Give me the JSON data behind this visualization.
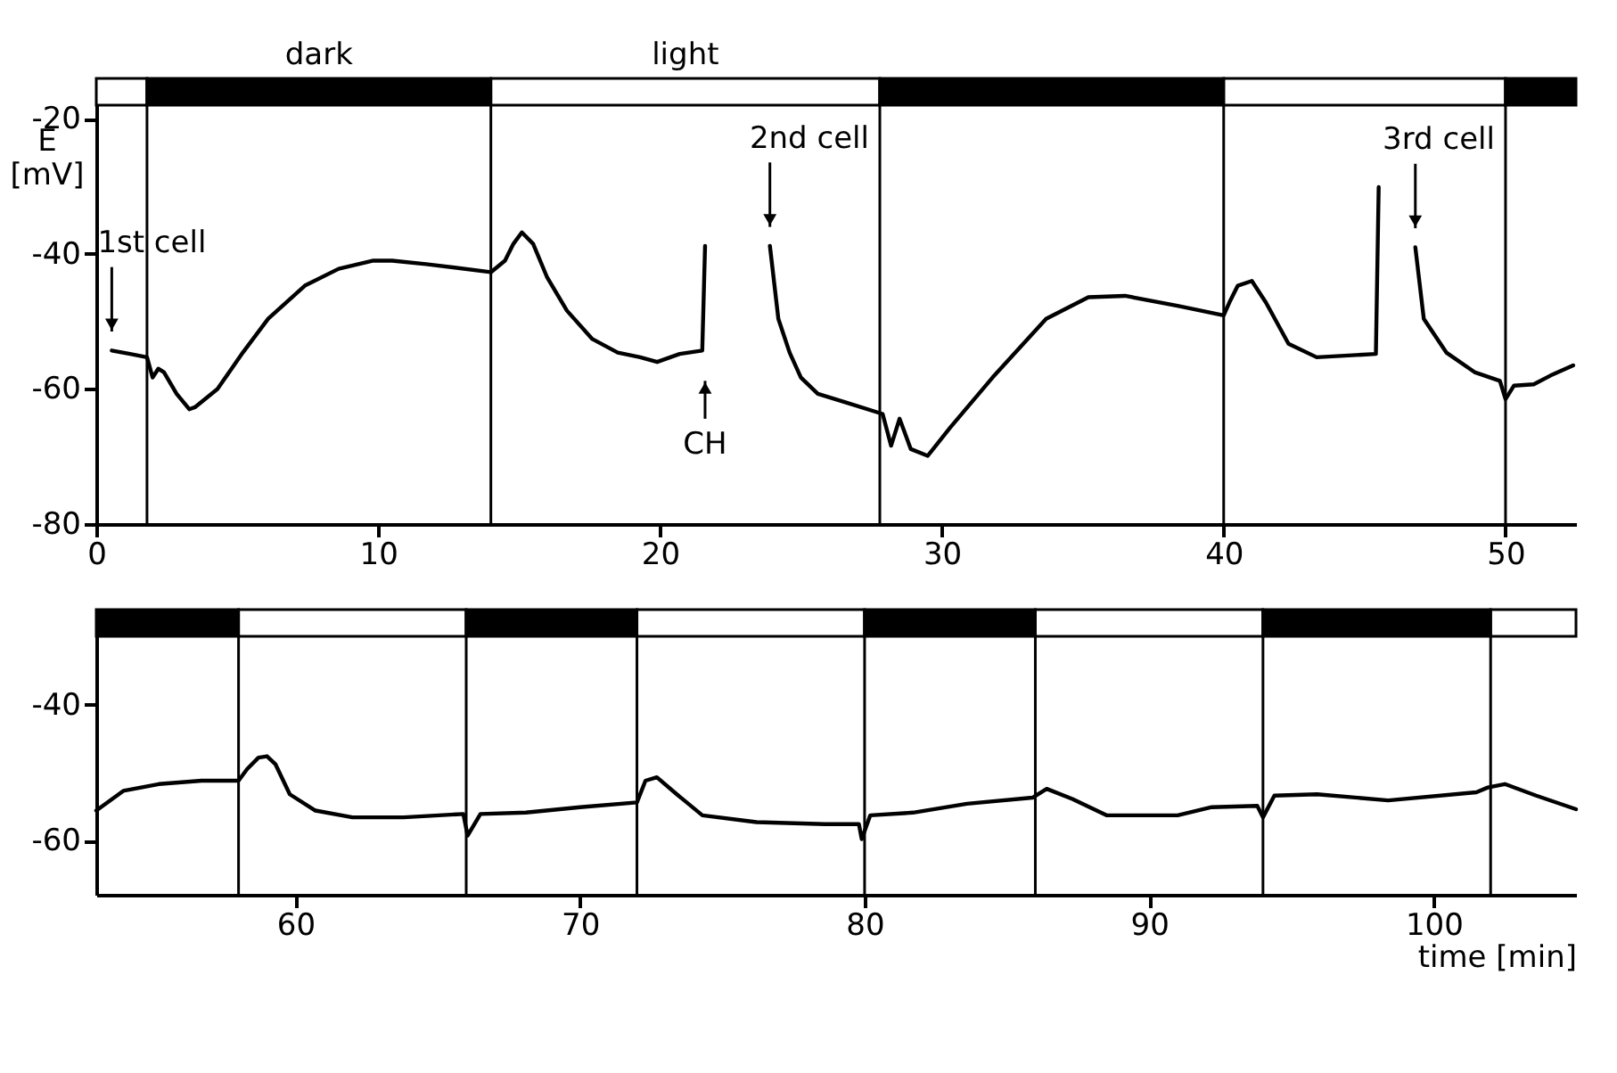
{
  "chart_data": [
    {
      "type": "line",
      "ylabel": "E [mV]",
      "xlim": [
        0,
        52.5
      ],
      "ylim": [
        -80,
        -14
      ],
      "xticks": [
        0,
        10,
        20,
        30,
        40,
        50
      ],
      "yticks": [
        -20,
        -40,
        -60,
        -80
      ],
      "x": [
        0.55,
        1.2,
        1.8,
        2.0,
        2.2,
        2.4,
        2.85,
        3.3,
        3.5,
        4.3,
        5.2,
        6.1,
        7.4,
        8.6,
        9.8,
        10.5,
        11.7,
        14,
        14.5,
        14.8,
        15.1,
        15.5,
        16,
        16.7,
        17.6,
        18.5,
        19.3,
        19.9,
        20.7,
        21.5,
        21.6,
        22.7,
        23.9,
        24.2,
        24.6,
        25,
        25.6,
        26.6,
        27.9,
        28.2,
        28.5,
        28.9,
        29.5,
        30.3,
        31.8,
        33.7,
        35.2,
        36.5,
        38.4,
        40,
        40.2,
        40.5,
        41,
        41.5,
        42.3,
        43.3,
        45.4,
        45.5,
        46.1,
        46.8,
        47.1,
        47.9,
        48.9,
        49.8,
        50,
        50.3,
        51,
        51.6,
        52.4
      ],
      "series": [
        {
          "color": "#000000",
          "values": [
            -54.3,
            -54.8,
            -55.3,
            -58.3,
            -57,
            -57.5,
            -60.7,
            -63,
            -62.7,
            -60,
            -54.6,
            -49.6,
            -44.7,
            -42.2,
            -41,
            -41,
            -41.5,
            -42.7,
            -41,
            -38.5,
            -36.8,
            -38.5,
            -43.5,
            -48.4,
            -52.6,
            -54.6,
            -55.3,
            -56,
            -54.8,
            -54.3,
            -38.8,
            null,
            -38.8,
            -49.6,
            -54.6,
            -58.3,
            -60.7,
            -62,
            -63.7,
            -68.4,
            -64.4,
            -68.9,
            -69.9,
            -65.7,
            -58.3,
            -49.6,
            -46.4,
            -46.2,
            -47.7,
            -49.1,
            -47.2,
            -44.7,
            -44,
            -47.2,
            -53.3,
            -55.3,
            -54.8,
            -30.1,
            null,
            -39,
            -49.6,
            -54.6,
            -57.5,
            -58.8,
            -61.5,
            -59.5,
            -59.3,
            -58,
            -56.5
          ]
        }
      ],
      "bands": [
        {
          "axis": "x",
          "from": 0,
          "to": 1.8,
          "color": "#ffffff"
        },
        {
          "axis": "x",
          "from": 1.8,
          "to": 14,
          "color": "#000000",
          "label": "dark"
        },
        {
          "axis": "x",
          "from": 14,
          "to": 27.8,
          "color": "#ffffff",
          "label": "light"
        },
        {
          "axis": "x",
          "from": 27.8,
          "to": 40,
          "color": "#000000"
        },
        {
          "axis": "x",
          "from": 40,
          "to": 50,
          "color": "#ffffff"
        },
        {
          "axis": "x",
          "from": 50,
          "to": 52.5,
          "color": "#000000"
        }
      ],
      "ref_lines": [
        {
          "axis": "x",
          "value": 1.8,
          "color": "#000000"
        },
        {
          "axis": "x",
          "value": 14,
          "color": "#000000"
        },
        {
          "axis": "x",
          "value": 27.8,
          "color": "#000000"
        },
        {
          "axis": "x",
          "value": 40,
          "color": "#000000"
        },
        {
          "axis": "x",
          "value": 50,
          "color": "#000000"
        }
      ],
      "annotations": [
        {
          "text": "1st cell",
          "x": 0.55,
          "y": -54.3
        },
        {
          "text": "2nd cell",
          "x": 23.9,
          "y": -38.8
        },
        {
          "text": "CH",
          "x": 21.6,
          "y": -54.3
        },
        {
          "text": "3rd cell",
          "x": 46.8,
          "y": -39
        }
      ]
    },
    {
      "type": "line",
      "xlabel": "time [min]",
      "xlim": [
        53,
        105
      ],
      "ylim": [
        -68,
        -26
      ],
      "xticks": [
        60,
        70,
        80,
        90,
        100
      ],
      "yticks": [
        -40,
        -60
      ],
      "x": [
        53,
        53.95,
        55.2,
        56.7,
        58,
        58.3,
        58.7,
        59,
        59.3,
        59.8,
        60.7,
        62,
        63.8,
        65.9,
        66.05,
        66.5,
        68.1,
        70,
        72,
        72.3,
        72.7,
        73.4,
        74.3,
        76.2,
        78.6,
        79.8,
        79.9,
        80.2,
        81.7,
        83.6,
        85.9,
        86.4,
        87.3,
        88.5,
        91,
        92.2,
        93.8,
        94,
        94.4,
        95.9,
        98.4,
        101.5,
        101.9,
        102.5,
        103.6,
        105
      ],
      "series": [
        {
          "color": "#000000",
          "values": [
            -55.6,
            -52.7,
            -51.7,
            -51.2,
            -51.2,
            -49.5,
            -47.8,
            -47.6,
            -48.8,
            -53.2,
            -55.6,
            -56.6,
            -56.6,
            -56.1,
            -59.3,
            -56.1,
            -55.9,
            -55.1,
            -54.4,
            -51.2,
            -50.7,
            -53.2,
            -56.3,
            -57.3,
            -57.6,
            -57.6,
            -59.8,
            -56.3,
            -55.9,
            -54.6,
            -53.7,
            -52.4,
            -53.9,
            -56.3,
            -56.3,
            -55.1,
            -54.9,
            -56.6,
            -53.4,
            -53.2,
            -54.1,
            -52.9,
            -52.2,
            -51.7,
            -53.4,
            -55.4
          ]
        }
      ],
      "bands": [
        {
          "axis": "x",
          "from": 53,
          "to": 58,
          "color": "#000000"
        },
        {
          "axis": "x",
          "from": 58,
          "to": 66,
          "color": "#ffffff"
        },
        {
          "axis": "x",
          "from": 66,
          "to": 72,
          "color": "#000000"
        },
        {
          "axis": "x",
          "from": 72,
          "to": 80,
          "color": "#ffffff"
        },
        {
          "axis": "x",
          "from": 80,
          "to": 86,
          "color": "#000000"
        },
        {
          "axis": "x",
          "from": 86,
          "to": 94,
          "color": "#ffffff"
        },
        {
          "axis": "x",
          "from": 94,
          "to": 102,
          "color": "#000000"
        },
        {
          "axis": "x",
          "from": 102,
          "to": 105,
          "color": "#ffffff"
        }
      ],
      "ref_lines": [
        {
          "axis": "x",
          "value": 58,
          "color": "#000000"
        },
        {
          "axis": "x",
          "value": 66,
          "color": "#000000"
        },
        {
          "axis": "x",
          "value": 72,
          "color": "#000000"
        },
        {
          "axis": "x",
          "value": 80,
          "color": "#000000"
        },
        {
          "axis": "x",
          "value": 86,
          "color": "#000000"
        },
        {
          "axis": "x",
          "value": 94,
          "color": "#000000"
        },
        {
          "axis": "x",
          "value": 102,
          "color": "#000000"
        }
      ]
    }
  ]
}
